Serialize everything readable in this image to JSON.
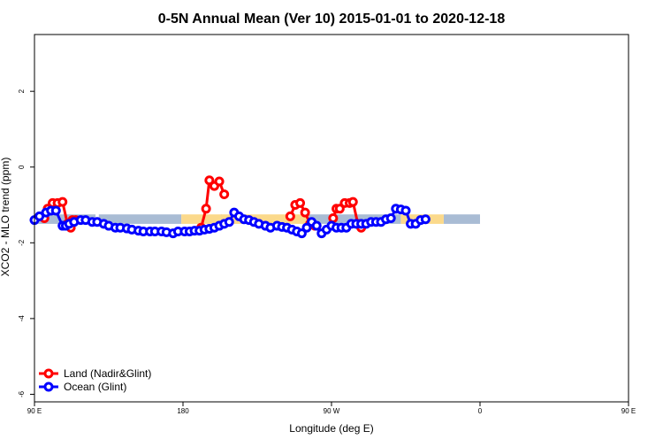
{
  "chart_data": {
    "type": "line",
    "title": "0-5N Annual Mean (Ver 10)   2015-01-01 to 2020-12-18",
    "xlabel": "Longitude (deg E)",
    "ylabel": "XCO2 - MLO trend (ppm)",
    "xlim": [
      90,
      450
    ],
    "ylim": [
      -6.2,
      3.5
    ],
    "x_ticks": [
      {
        "value": 90,
        "label": "90 E"
      },
      {
        "value": 180,
        "label": "180"
      },
      {
        "value": 270,
        "label": "90 W"
      },
      {
        "value": 360,
        "label": "0"
      },
      {
        "value": 450,
        "label": "90 E"
      },
      {
        "value": 540,
        "label": "180"
      }
    ],
    "y_ticks": [
      {
        "value": 2,
        "label": "2"
      },
      {
        "value": 0,
        "label": "0"
      },
      {
        "value": -2,
        "label": "-2"
      },
      {
        "value": -4,
        "label": "-4"
      },
      {
        "value": -6,
        "label": "-6"
      }
    ],
    "x_scale_note": "axis spans 90E..180 on a wrapped longitude",
    "bands": [
      {
        "name": "ocean band",
        "color": "#a9bcd4",
        "y_range": [
          -1.5,
          -1.25
        ],
        "segments": [
          [
            0,
            37
          ],
          [
            39,
            89
          ],
          [
            113,
            113
          ],
          [
            166,
            222
          ],
          [
            248,
            270
          ]
        ]
      },
      {
        "name": "land band",
        "color": "#fbd98b",
        "y_range": [
          -1.5,
          -1.25
        ],
        "segments": [
          [
            89,
            113
          ],
          [
            113,
            166
          ],
          [
            222,
            248
          ]
        ]
      }
    ],
    "series": [
      {
        "name": "Land (Nadir&Glint)",
        "color": "#ff0000",
        "segments": [
          {
            "x": [
              96,
              98,
              101,
              104,
              107,
              110,
              112
            ],
            "y": [
              -1.35,
              -1.1,
              -0.95,
              -0.95,
              -0.92,
              -1.5,
              -1.6
            ]
          },
          {
            "x": [
              113,
              115
            ],
            "y": [
              -1.4,
              -1.4
            ]
          },
          {
            "x": [
              191,
              194,
              196,
              199,
              202,
              205
            ],
            "y": [
              -1.6,
              -1.1,
              -0.35,
              -0.5,
              -0.38,
              -0.72
            ]
          },
          {
            "x": [
              245,
              248,
              251,
              254,
              257,
              260
            ],
            "y": [
              -1.3,
              -1.0,
              -0.95,
              -1.2,
              -1.5,
              -1.55
            ]
          },
          {
            "x": [
              271,
              273,
              275,
              278,
              281,
              283,
              286,
              288
            ],
            "y": [
              -1.35,
              -1.1,
              -1.1,
              -0.95,
              -0.95,
              -0.92,
              -1.5,
              -1.6
            ]
          }
        ]
      },
      {
        "name": "Ocean (Glint)",
        "color": "#0000ff",
        "segments": [
          {
            "x": [
              90,
              93,
              97,
              100,
              103,
              107,
              109,
              111,
              114,
              118,
              121,
              125,
              128,
              132,
              135,
              139,
              142,
              146,
              149,
              153,
              156,
              160,
              163,
              167,
              170,
              174,
              177,
              181,
              184,
              187,
              190,
              193
            ],
            "y": [
              -1.4,
              -1.3,
              -1.2,
              -1.15,
              -1.15,
              -1.55,
              -1.55,
              -1.5,
              -1.45,
              -1.4,
              -1.4,
              -1.45,
              -1.45,
              -1.5,
              -1.55,
              -1.6,
              -1.6,
              -1.62,
              -1.65,
              -1.68,
              -1.7,
              -1.7,
              -1.7,
              -1.7,
              -1.72,
              -1.75,
              -1.7,
              -1.7,
              -1.7,
              -1.68,
              -1.68,
              -1.65
            ]
          },
          {
            "x": [
              196,
              199,
              202,
              205,
              208,
              211,
              214,
              217,
              220,
              223,
              226,
              230,
              233,
              237,
              240,
              243,
              246,
              249,
              252
            ],
            "y": [
              -1.63,
              -1.6,
              -1.55,
              -1.5,
              -1.45,
              -1.2,
              -1.3,
              -1.38,
              -1.4,
              -1.45,
              -1.5,
              -1.55,
              -1.6,
              -1.55,
              -1.58,
              -1.6,
              -1.65,
              -1.7,
              -1.75
            ]
          },
          {
            "x": [
              255,
              258,
              261,
              264,
              267,
              270,
              273,
              276,
              279,
              282,
              285,
              288,
              291,
              294,
              297,
              300,
              303,
              306,
              309,
              312,
              315,
              318,
              321,
              324,
              327
            ],
            "y": [
              -1.6,
              -1.45,
              -1.55,
              -1.75,
              -1.65,
              -1.55,
              -1.6,
              -1.6,
              -1.6,
              -1.5,
              -1.5,
              -1.5,
              -1.5,
              -1.45,
              -1.45,
              -1.45,
              -1.38,
              -1.35,
              -1.1,
              -1.12,
              -1.15,
              -1.5,
              -1.5,
              -1.4,
              -1.38
            ]
          }
        ]
      }
    ],
    "legend": {
      "placement": "bottom-left",
      "entries": [
        {
          "label": "Land (Nadir&Glint)",
          "color": "#ff0000"
        },
        {
          "label": "Ocean (Glint)",
          "color": "#0000ff"
        }
      ]
    },
    "grid": false
  }
}
